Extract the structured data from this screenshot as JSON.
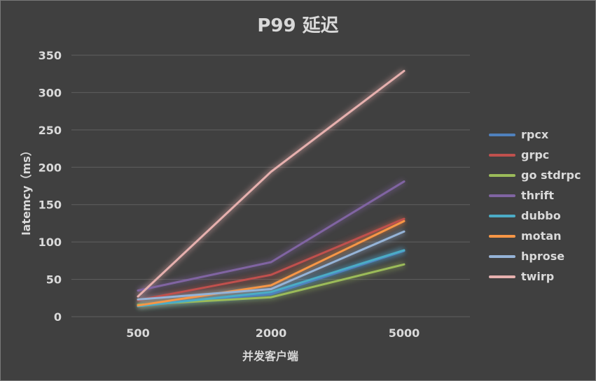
{
  "chart_data": {
    "type": "line",
    "title": "P99 延迟",
    "xlabel": "并发客户端",
    "ylabel": "latemcy（ms）",
    "categories": [
      "500",
      "2000",
      "5000"
    ],
    "ylim": [
      0,
      350
    ],
    "yticks": [
      "0",
      "50",
      "100",
      "150",
      "200",
      "250",
      "300",
      "350"
    ],
    "grid": true,
    "legend_position": "right",
    "series": [
      {
        "name": "rpcx",
        "color": "#4f81bd",
        "values": [
          16,
          30,
          88
        ]
      },
      {
        "name": "grpc",
        "color": "#c0504d",
        "values": [
          22,
          56,
          131
        ]
      },
      {
        "name": "go stdrpc",
        "color": "#9bbb59",
        "values": [
          16,
          26,
          70
        ]
      },
      {
        "name": "thrift",
        "color": "#8064a2",
        "values": [
          35,
          73,
          181
        ]
      },
      {
        "name": "dubbo",
        "color": "#4bacc6",
        "values": [
          14,
          33,
          89
        ]
      },
      {
        "name": "motan",
        "color": "#f79646",
        "values": [
          15,
          42,
          128
        ]
      },
      {
        "name": "hprose",
        "color": "#95b3d7",
        "values": [
          23,
          37,
          114
        ]
      },
      {
        "name": "twirp",
        "color": "#e6b0ae",
        "values": [
          27,
          194,
          329
        ]
      }
    ]
  }
}
